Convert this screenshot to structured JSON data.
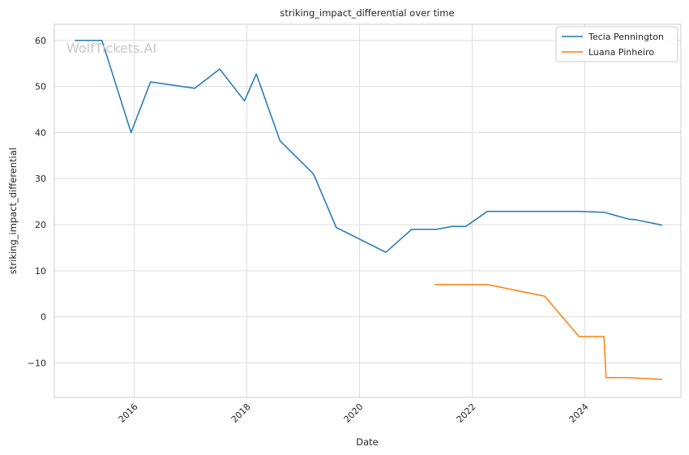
{
  "chart_data": {
    "type": "line",
    "title": "striking_impact_differential over time",
    "xlabel": "Date",
    "ylabel": "striking_impact_differential",
    "watermark": "WolfTickets.AI",
    "xlim": [
      "2014-08-01",
      "2025-09-15"
    ],
    "ylim": [
      -17.5,
      63.5
    ],
    "xticks": [
      {
        "date": "2016-01-01",
        "label": "2016"
      },
      {
        "date": "2018-01-01",
        "label": "2018"
      },
      {
        "date": "2020-01-01",
        "label": "2020"
      },
      {
        "date": "2022-01-01",
        "label": "2022"
      },
      {
        "date": "2024-01-01",
        "label": "2024"
      }
    ],
    "yticks": [
      -10,
      0,
      10,
      20,
      30,
      40,
      50,
      60
    ],
    "grid": true,
    "legend_position": "top-right",
    "series": [
      {
        "name": "Tecia Pennington",
        "color": "#1f77b4",
        "points": [
          [
            "2014-12-13",
            60.0
          ],
          [
            "2015-06-06",
            60.0
          ],
          [
            "2015-12-12",
            40.0
          ],
          [
            "2016-04-16",
            51.0
          ],
          [
            "2017-01-28",
            49.6
          ],
          [
            "2017-07-08",
            53.8
          ],
          [
            "2017-12-16",
            46.9
          ],
          [
            "2018-03-03",
            52.7
          ],
          [
            "2018-08-04",
            38.2
          ],
          [
            "2019-03-09",
            31.0
          ],
          [
            "2019-08-03",
            19.4
          ],
          [
            "2020-06-20",
            14.0
          ],
          [
            "2020-12-05",
            19.0
          ],
          [
            "2021-05-15",
            19.0
          ],
          [
            "2021-08-21",
            19.6
          ],
          [
            "2021-11-20",
            19.6
          ],
          [
            "2022-04-09",
            22.9
          ],
          [
            "2023-05-06",
            22.9
          ],
          [
            "2023-11-25",
            22.9
          ],
          [
            "2024-05-04",
            22.7
          ],
          [
            "2024-10-12",
            21.2
          ],
          [
            "2024-11-23",
            21.1
          ],
          [
            "2025-05-17",
            19.9
          ]
        ]
      },
      {
        "name": "Luana Pinheiro",
        "color": "#ff7f0e",
        "points": [
          [
            "2021-05-01",
            7.0
          ],
          [
            "2022-04-09",
            7.0
          ],
          [
            "2023-04-15",
            4.5
          ],
          [
            "2023-11-25",
            -4.3
          ],
          [
            "2024-05-04",
            -4.3
          ],
          [
            "2024-05-18",
            -13.2
          ],
          [
            "2024-10-12",
            -13.2
          ],
          [
            "2025-05-17",
            -13.6
          ]
        ]
      }
    ]
  }
}
